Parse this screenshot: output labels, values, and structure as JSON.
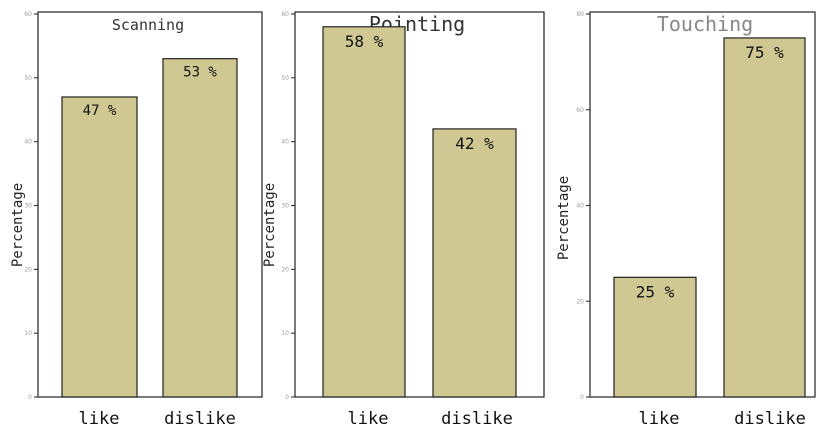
{
  "chart_data": [
    {
      "type": "bar",
      "title": "Scanning",
      "ylabel": "Percentage",
      "categories": [
        "like",
        "dislike"
      ],
      "values": [
        47,
        53
      ],
      "data_labels": [
        "47 %",
        "53 %"
      ],
      "ylim": [
        0,
        60
      ],
      "yticks": [
        0,
        10,
        20,
        30,
        40,
        50,
        60
      ],
      "grid": false,
      "bar_color": "#cfc892"
    },
    {
      "type": "bar",
      "title": "Pointing",
      "ylabel": "Percentage",
      "categories": [
        "like",
        "dislike"
      ],
      "values": [
        58,
        42
      ],
      "data_labels": [
        "58 %",
        "42 %"
      ],
      "ylim": [
        0,
        60
      ],
      "yticks": [
        0,
        10,
        20,
        30,
        40,
        50,
        60
      ],
      "grid": false,
      "bar_color": "#cfc892"
    },
    {
      "type": "bar",
      "title": "Touching",
      "ylabel": "Percentage",
      "categories": [
        "like",
        "dislike"
      ],
      "values": [
        25,
        75
      ],
      "data_labels": [
        "25 %",
        "75 %"
      ],
      "ylim": [
        0,
        80
      ],
      "yticks": [
        0,
        20,
        40,
        60,
        80
      ],
      "grid": false,
      "bar_color": "#cfc892"
    }
  ]
}
